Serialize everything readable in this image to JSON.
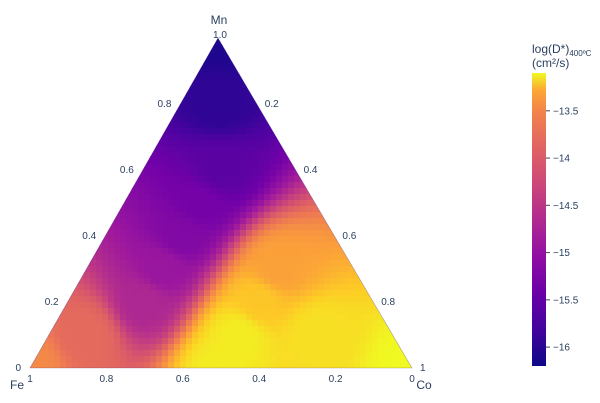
{
  "chart_data": {
    "type": "heatmap",
    "subtype": "ternary",
    "vertices": {
      "top": "Mn",
      "left": "Fe",
      "right": "Co"
    },
    "axes": {
      "mn": {
        "ticks": [
          "0",
          "0.2",
          "0.4",
          "0.6",
          "0.8",
          "1.0"
        ]
      },
      "fe": {
        "ticks": [
          "0",
          "0.2",
          "0.4",
          "0.6",
          "0.8",
          "1"
        ]
      },
      "co": {
        "ticks": [
          "0",
          "0.2",
          "0.4",
          "0.6",
          "0.8",
          "1"
        ]
      }
    },
    "colorbar": {
      "title_line1": "log(D*)",
      "title_sub": "400ºC",
      "title_line2": "(cm²/s)",
      "ticks": [
        "−13.5",
        "−14",
        "−14.5",
        "−15",
        "−15.5",
        "−16"
      ],
      "tick_values": [
        -13.5,
        -14,
        -14.5,
        -15,
        -15.5,
        -16
      ],
      "range": [
        -16.2,
        -13.1
      ],
      "colorscale": "plasma"
    },
    "regions": [
      {
        "mn": 1.0,
        "fe": 0.0,
        "co": 0.0,
        "value": -16.1
      },
      {
        "mn": 0.8,
        "fe": 0.1,
        "co": 0.1,
        "value": -16.0
      },
      {
        "mn": 0.6,
        "fe": 0.2,
        "co": 0.2,
        "value": -15.7
      },
      {
        "mn": 0.5,
        "fe": 0.3,
        "co": 0.2,
        "value": -15.5
      },
      {
        "mn": 0.4,
        "fe": 0.4,
        "co": 0.2,
        "value": -15.4
      },
      {
        "mn": 0.3,
        "fe": 0.5,
        "co": 0.2,
        "value": -15.2
      },
      {
        "mn": 0.2,
        "fe": 0.6,
        "co": 0.2,
        "value": -15.0
      },
      {
        "mn": 0.1,
        "fe": 0.8,
        "co": 0.1,
        "value": -14.3
      },
      {
        "mn": 0.0,
        "fe": 1.0,
        "co": 0.0,
        "value": -14.0
      },
      {
        "mn": 0.3,
        "fe": 0.2,
        "co": 0.5,
        "value": -13.8
      },
      {
        "mn": 0.2,
        "fe": 0.3,
        "co": 0.5,
        "value": -13.5
      },
      {
        "mn": 0.1,
        "fe": 0.4,
        "co": 0.5,
        "value": -13.2
      },
      {
        "mn": 0.0,
        "fe": 0.5,
        "co": 0.5,
        "value": -13.2
      },
      {
        "mn": 0.1,
        "fe": 0.2,
        "co": 0.7,
        "value": -13.3
      },
      {
        "mn": 0.0,
        "fe": 0.0,
        "co": 1.0,
        "value": -13.1
      }
    ]
  }
}
